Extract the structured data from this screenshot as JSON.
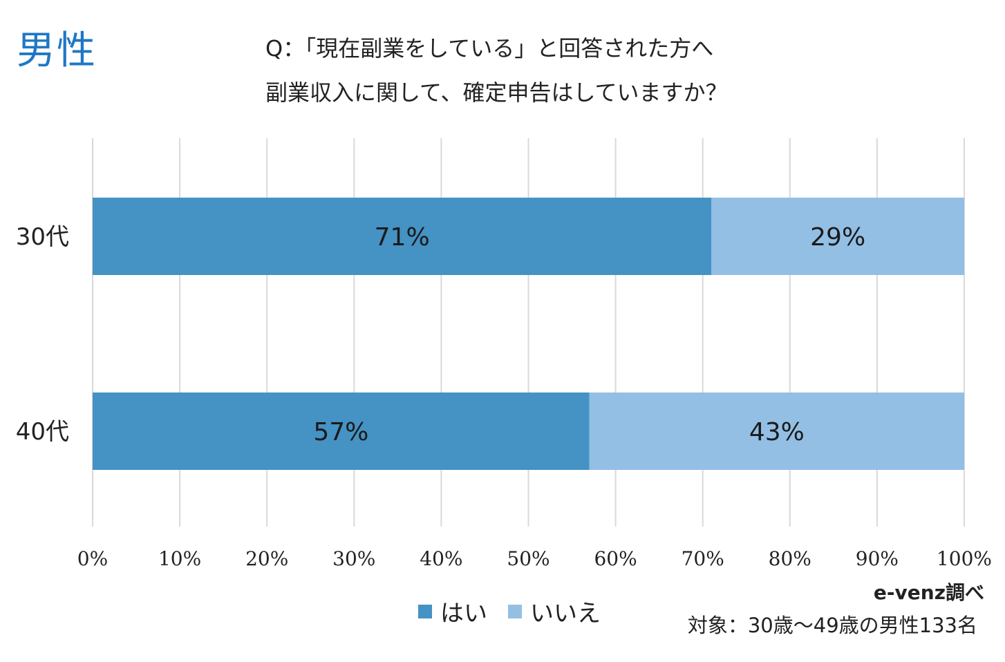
{
  "header": {
    "gender_label": "男性",
    "question_line1": "Q：「現在副業をしている」と回答された方へ",
    "question_line2": "副業収入に関して、確定申告はしていますか？"
  },
  "footer": {
    "source": "e-venz調べ",
    "target": "対象：30歳〜49歳の男性133名"
  },
  "colors": {
    "yes": "#4592c4",
    "no": "#93bfe4",
    "grid": "#d9d9d9"
  },
  "chart_data": {
    "type": "bar",
    "orientation": "horizontal",
    "stacked": true,
    "categories": [
      "30代",
      "40代"
    ],
    "series": [
      {
        "name": "はい",
        "values": [
          71,
          57
        ],
        "labels": [
          "71%",
          "57%"
        ]
      },
      {
        "name": "いいえ",
        "values": [
          29,
          43
        ],
        "labels": [
          "29%",
          "43%"
        ]
      }
    ],
    "xlim": [
      0,
      100
    ],
    "x_ticks": [
      "0%",
      "10%",
      "20%",
      "30%",
      "40%",
      "50%",
      "60%",
      "70%",
      "80%",
      "90%",
      "100%"
    ],
    "grid": true,
    "legend": "bottom"
  }
}
